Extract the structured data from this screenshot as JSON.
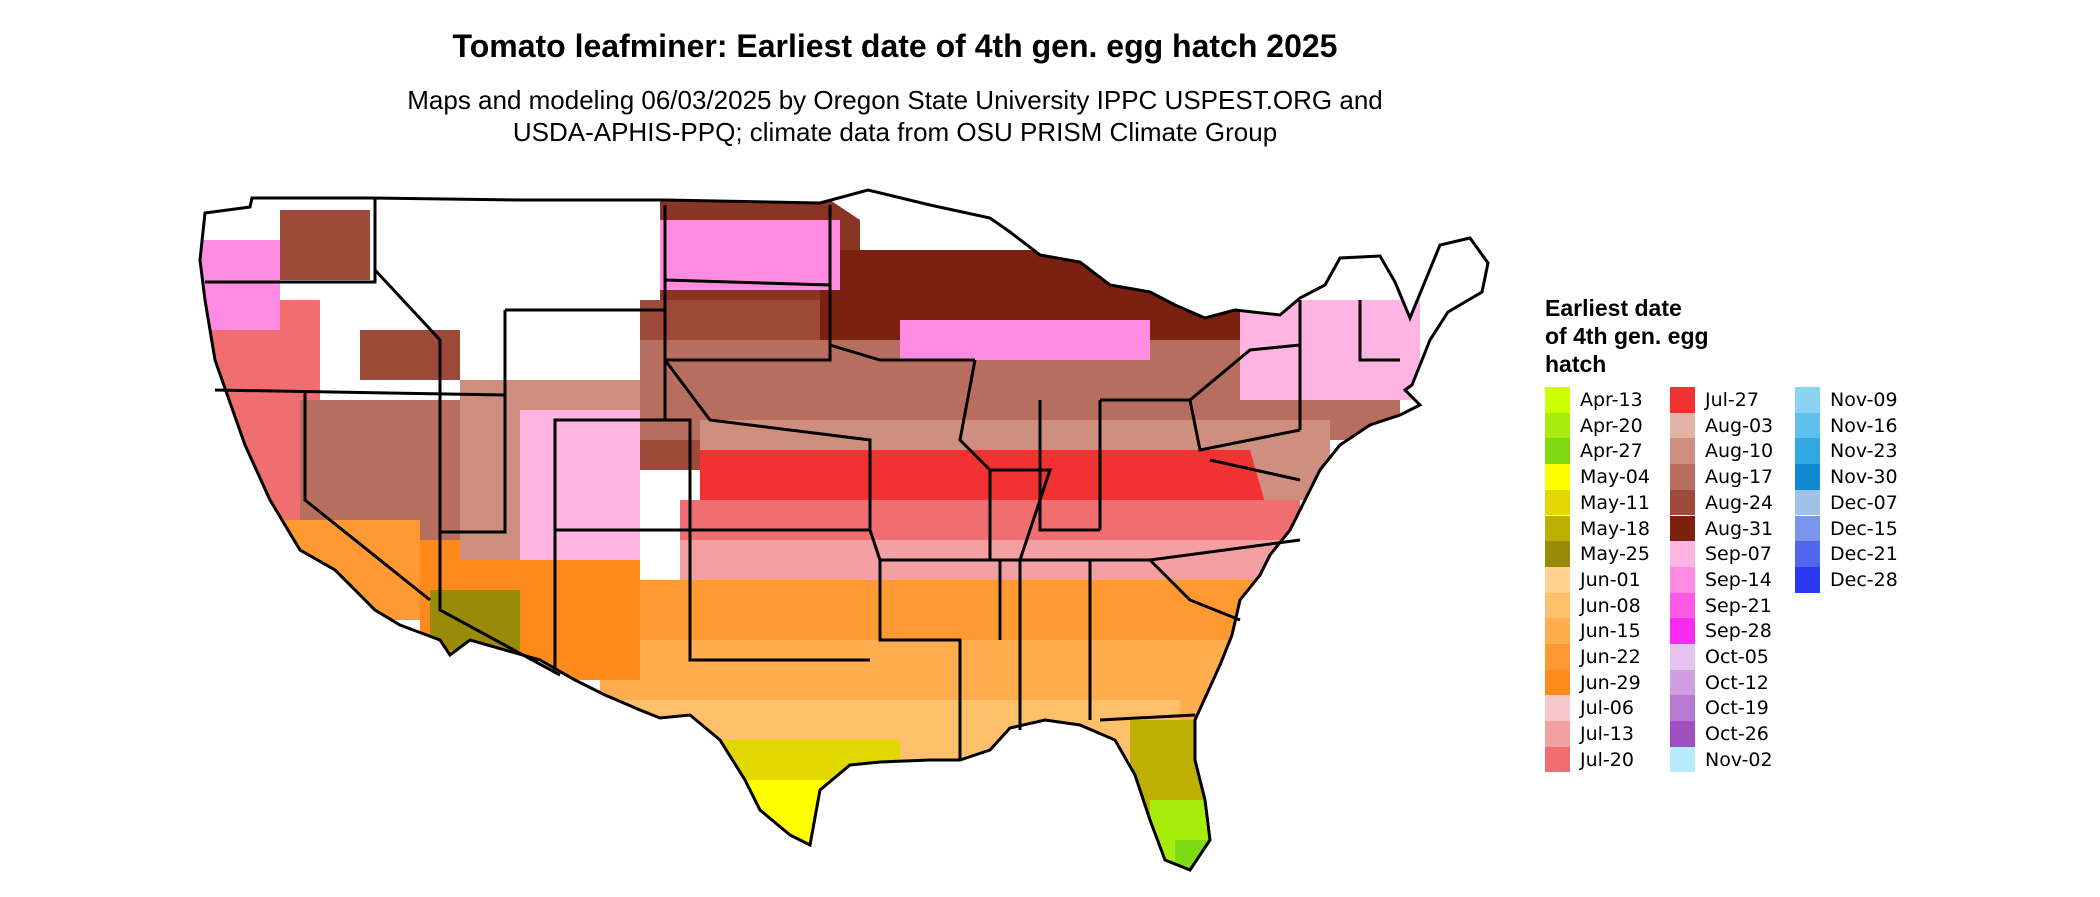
{
  "map": {
    "title": "Tomato leafminer: Earliest date of 4th gen. egg hatch 2025",
    "subtitle_line1": "Maps and modeling 06/03/2025 by Oregon State University IPPC USPEST.ORG and",
    "subtitle_line2": "USDA-APHIS-PPQ; climate data from OSU PRISM Climate Group",
    "region": "conterminous-united-states",
    "state_boundaries": true,
    "unshaded_color": "#ffffff"
  },
  "legend": {
    "title_line1": "Earliest date",
    "title_line2": "of 4th gen. egg",
    "title_line3": "hatch",
    "columns": [
      [
        {
          "label": "Apr-13",
          "color": "#ccff00"
        },
        {
          "label": "Apr-20",
          "color": "#a8ec0e"
        },
        {
          "label": "Apr-27",
          "color": "#7fdc14"
        },
        {
          "label": "May-04",
          "color": "#ffff00"
        },
        {
          "label": "May-11",
          "color": "#e2d800"
        },
        {
          "label": "May-18",
          "color": "#bdb000"
        },
        {
          "label": "May-25",
          "color": "#9a8a0a"
        },
        {
          "label": "Jun-01",
          "color": "#ffd28e"
        },
        {
          "label": "Jun-08",
          "color": "#ffc06c"
        },
        {
          "label": "Jun-15",
          "color": "#ffad4e"
        },
        {
          "label": "Jun-22",
          "color": "#ff9a32"
        },
        {
          "label": "Jun-29",
          "color": "#ff8a1c"
        },
        {
          "label": "Jul-06",
          "color": "#f6c8cc"
        },
        {
          "label": "Jul-13",
          "color": "#f3a0a2"
        },
        {
          "label": "Jul-20",
          "color": "#f06e70"
        }
      ],
      [
        {
          "label": "Jul-27",
          "color": "#f23232"
        },
        {
          "label": "Aug-03",
          "color": "#e2b4a8"
        },
        {
          "label": "Aug-10",
          "color": "#cf8f80"
        },
        {
          "label": "Aug-17",
          "color": "#b86e5e"
        },
        {
          "label": "Aug-24",
          "color": "#9e4a3a"
        },
        {
          "label": "Aug-31",
          "color": "#7c2010"
        },
        {
          "label": "Sep-07",
          "color": "#ffb4e2"
        },
        {
          "label": "Sep-14",
          "color": "#ff8ce2"
        },
        {
          "label": "Sep-21",
          "color": "#ff5ae6"
        },
        {
          "label": "Sep-28",
          "color": "#f72cf0"
        },
        {
          "label": "Oct-05",
          "color": "#e4c4ec"
        },
        {
          "label": "Oct-12",
          "color": "#cf9ee2"
        },
        {
          "label": "Oct-19",
          "color": "#b77ad4"
        },
        {
          "label": "Oct-26",
          "color": "#9e50c0"
        },
        {
          "label": "Nov-02",
          "color": "#b4ecfc"
        }
      ],
      [
        {
          "label": "Nov-09",
          "color": "#88d4f2"
        },
        {
          "label": "Nov-16",
          "color": "#5ec0ec"
        },
        {
          "label": "Nov-23",
          "color": "#30a8e0"
        },
        {
          "label": "Nov-30",
          "color": "#0f8ad2"
        },
        {
          "label": "Dec-07",
          "color": "#a0c2e6"
        },
        {
          "label": "Dec-15",
          "color": "#7a96ea"
        },
        {
          "label": "Dec-21",
          "color": "#5066ee"
        },
        {
          "label": "Dec-28",
          "color": "#2a3af2"
        }
      ]
    ]
  }
}
